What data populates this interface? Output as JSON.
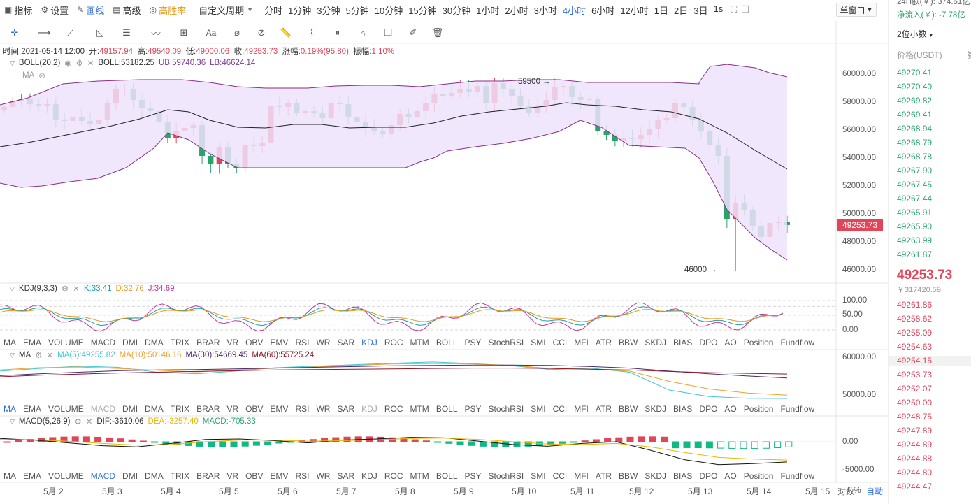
{
  "toolbar": {
    "indicator_label": "指标",
    "settings_label": "设置",
    "draw_label": "画线",
    "advanced_label": "高级",
    "win_rate_label": "高胜率",
    "custom_period_label": "自定义周期",
    "periods": [
      "分时",
      "1分钟",
      "3分钟",
      "5分钟",
      "10分钟",
      "15分钟",
      "30分钟",
      "1小时",
      "2小时",
      "3小时",
      "4小时",
      "6小时",
      "12小时",
      "1日",
      "2日",
      "3日",
      "1s"
    ],
    "active_period": "4小时",
    "window_mode_label": "单窗口"
  },
  "info_bar": {
    "time_label": "时间:",
    "time": "2021-05-14 12:00",
    "open_label": "开:",
    "open": "49157.94",
    "high_label": "高:",
    "high": "49540.09",
    "low_label": "低:",
    "low": "49000.06",
    "close_label": "收:",
    "close": "49253.73",
    "change_label": "涨幅:",
    "change": "0.19%(95.80)",
    "amplitude_label": "振幅:",
    "amplitude": "1.10%"
  },
  "boll": {
    "name": "BOLL(20,2)",
    "mid_label": "BOLL:53182.25",
    "ub_label": "UB:59740.36",
    "lb_label": "LB:46624.14",
    "ma_label": "MA",
    "high_annotation": "59500",
    "low_annotation": "46000",
    "last_price_tag": "49253.73",
    "axis": [
      "60000.00",
      "58000.00",
      "56000.00",
      "54000.00",
      "52000.00",
      "50000.00",
      "48000.00",
      "46000.00"
    ]
  },
  "kdj": {
    "name": "KDJ(9,3,3)",
    "k_label": "K:33.41",
    "d_label": "D:32.76",
    "j_label": "J:34.69",
    "axis": [
      "100.00",
      "50.00",
      "0.00"
    ]
  },
  "ma": {
    "name": "MA",
    "ma5_label": "MA(5):49255.82",
    "ma10_label": "MA(10):50146.16",
    "ma30_label": "MA(30):54669.45",
    "ma60_label": "MA(60):55725.24",
    "axis": [
      "60000.00",
      "50000.00"
    ]
  },
  "macd": {
    "name": "MACD(5,26,9)",
    "dif_label": "DIF:-3610.06",
    "dea_label": "DEA:-3257.40",
    "macd_label": "MACD:-705.33",
    "axis": [
      "0.00",
      "-5000.00"
    ]
  },
  "indicator_tabs": [
    "MA",
    "EMA",
    "VOLUME",
    "MACD",
    "DMI",
    "DMA",
    "TRIX",
    "BRAR",
    "VR",
    "OBV",
    "EMV",
    "RSI",
    "WR",
    "SAR",
    "KDJ",
    "ROC",
    "MTM",
    "BOLL",
    "PSY",
    "StochRSI",
    "SMI",
    "CCI",
    "MFI",
    "ATR",
    "BBW",
    "SKDJ",
    "BIAS",
    "DPO",
    "AO",
    "Position",
    "Fundflow"
  ],
  "dates": [
    "5月 2",
    "5月 3",
    "5月 4",
    "5月 5",
    "5月 6",
    "5月 7",
    "5月 8",
    "5月 9",
    "5月 10",
    "5月 11",
    "5月 12",
    "5月 13",
    "5月 14",
    "5月 15"
  ],
  "bottom_right": {
    "log_label": "对数",
    "percent_label": "%",
    "auto_label": "自动"
  },
  "right_panel": {
    "volume_24h": "24H额(￥): 374.61亿",
    "net_inflow": "净流入(￥): -7.78亿",
    "decimal_select": "2位小数",
    "price_header": "价格(USDT)",
    "qty_header": "数",
    "bids_top": [
      "49270.41",
      "49270.40",
      "49269.82",
      "49269.41",
      "49268.94",
      "49268.79",
      "49268.78",
      "49267.90",
      "49267.45",
      "49267.44",
      "49265.91",
      "49265.90",
      "49263.99",
      "49261.87"
    ],
    "last_price": "49253.73",
    "last_price_cny": "￥317420.59",
    "asks": [
      "49261.86",
      "49258.62",
      "49255.09",
      "49254.63",
      "49254.15",
      "49253.73",
      "49252.07",
      "49250.00",
      "49248.75",
      "49247.89",
      "49244.89",
      "49244.88",
      "49244.80",
      "49244.47"
    ]
  },
  "colors": {
    "up": "#e0455a",
    "down": "#2aa36a",
    "accent": "#2f6fe0",
    "boll_fill": "#f0e6fb"
  }
}
